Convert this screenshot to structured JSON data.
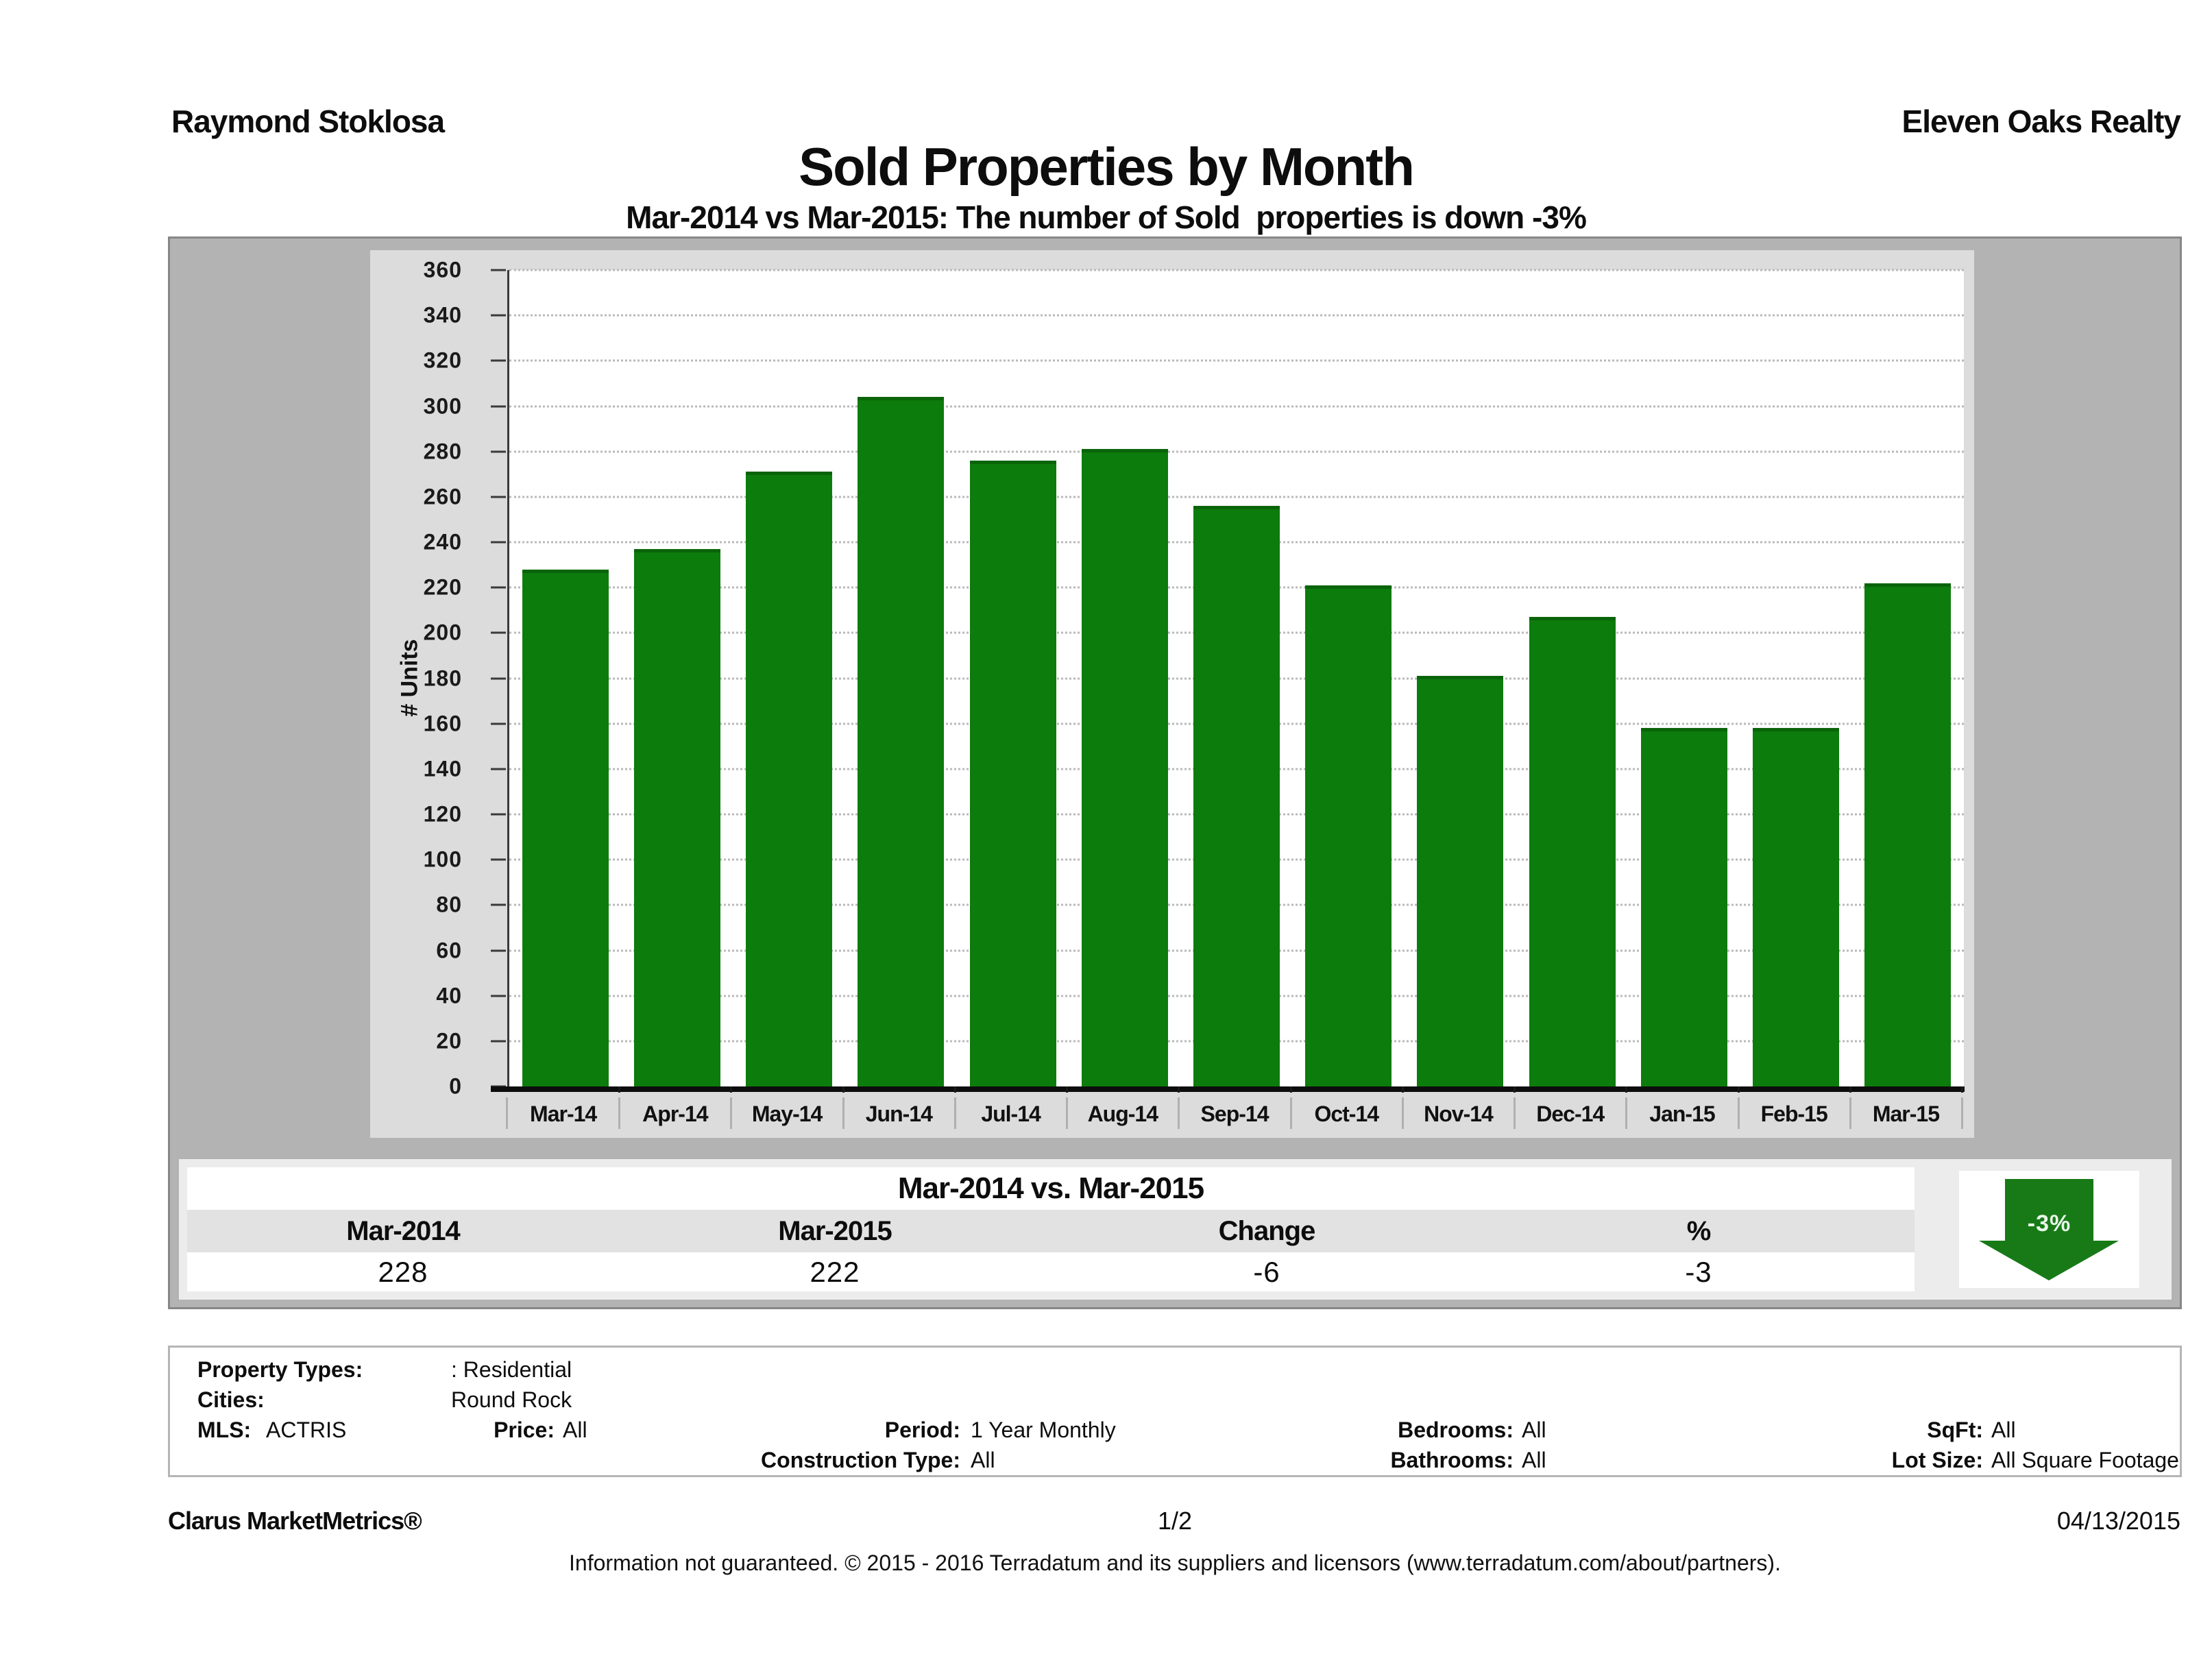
{
  "header": {
    "agent": "Raymond Stoklosa",
    "brokerage": "Eleven Oaks Realty",
    "title": "Sold Properties by Month",
    "subtitle": "Mar-2014 vs Mar-2015: The number of Sold  properties is down -3%"
  },
  "chart_data": {
    "type": "bar",
    "title": "Sold Properties by Month",
    "categories": [
      "Mar-14",
      "Apr-14",
      "May-14",
      "Jun-14",
      "Jul-14",
      "Aug-14",
      "Sep-14",
      "Oct-14",
      "Nov-14",
      "Dec-14",
      "Jan-15",
      "Feb-15",
      "Mar-15"
    ],
    "values": [
      228,
      237,
      271,
      304,
      276,
      281,
      256,
      221,
      181,
      207,
      158,
      158,
      222
    ],
    "xlabel": "",
    "ylabel": "# Units",
    "ylim": [
      0,
      360
    ],
    "ytick_step": 20,
    "grid": "horizontal-dotted",
    "legend": "none",
    "bar_color": "#0c7c0c"
  },
  "summary": {
    "title": "Mar-2014 vs. Mar-2015",
    "columns": [
      "Mar-2014",
      "Mar-2015",
      "Change",
      "%"
    ],
    "values": [
      "228",
      "222",
      "-6",
      "-3"
    ],
    "arrow_label": "-3%",
    "arrow_direction": "down",
    "arrow_color": "#177a17"
  },
  "parameters": {
    "property_types_label": "Property Types:",
    "property_types": ": Residential",
    "cities_label": "Cities:",
    "cities": "Round Rock",
    "mls_label": "MLS:",
    "mls": "ACTRIS",
    "price_label": "Price:",
    "price": "All",
    "period_label": "Period:",
    "period": "1 Year Monthly",
    "construction_label": "Construction Type:",
    "construction": "All",
    "bedrooms_label": "Bedrooms:",
    "bedrooms": "All",
    "bathrooms_label": "Bathrooms:",
    "bathrooms": "All",
    "sqft_label": "SqFt:",
    "sqft": "All",
    "lot_label": "Lot Size:",
    "lot": "All Square Footage"
  },
  "footer": {
    "product": "Clarus MarketMetrics®",
    "page": "1/2",
    "date": "04/13/2015",
    "disclaimer": "Information not guaranteed. © 2015 - 2016 Terradatum and its suppliers and licensors (www.terradatum.com/about/partners)."
  },
  "colors": {
    "panel_gray": "#b3b3b3",
    "inner_gray": "#dcdcdc",
    "strip_gray": "#ececec",
    "header_row_gray": "#e2e2e2",
    "bar_green": "#0c7c0c",
    "arrow_green": "#177a17"
  }
}
